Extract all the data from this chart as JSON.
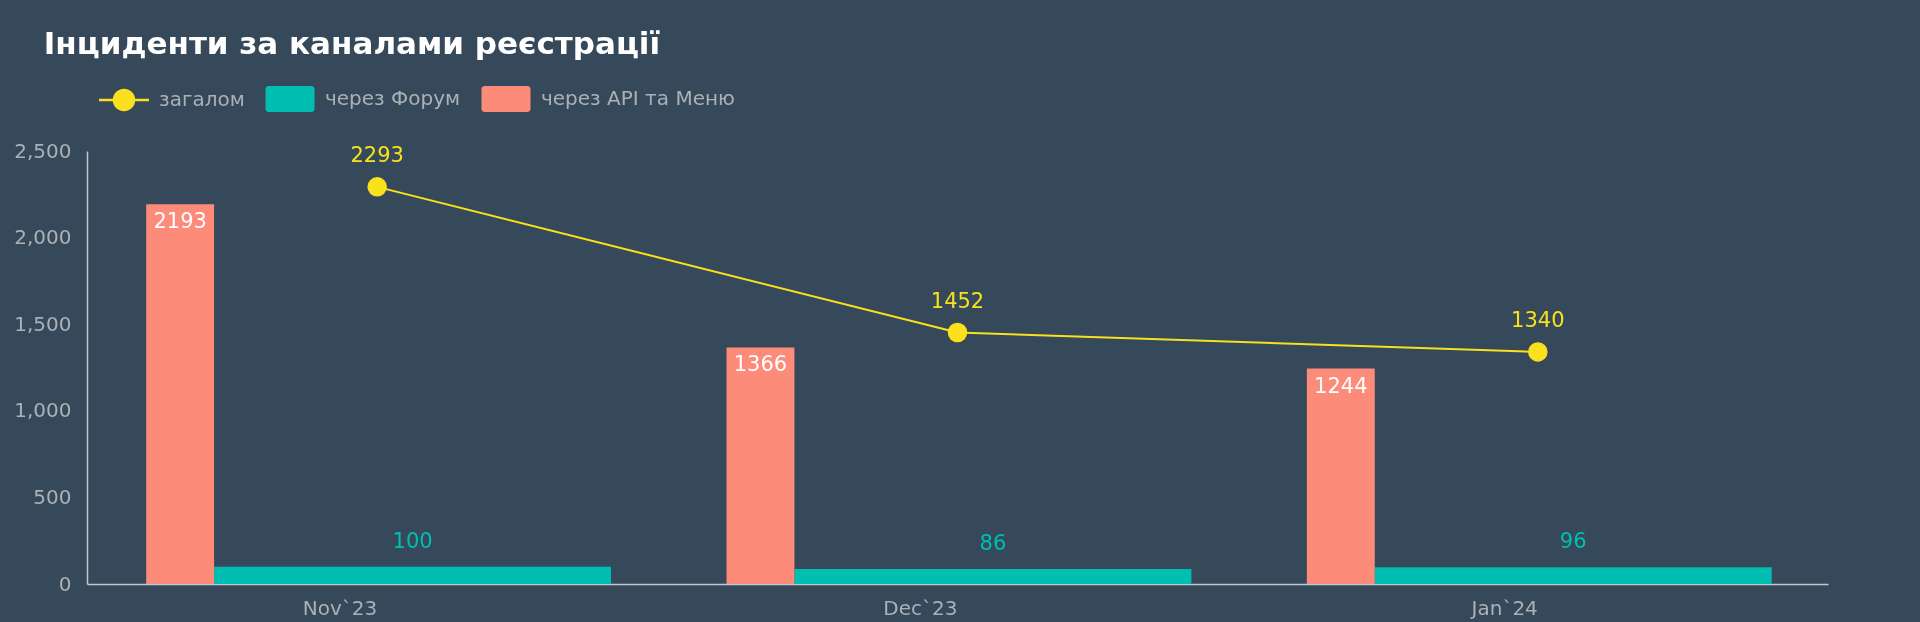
{
  "chart_data": {
    "type": "bar",
    "title": "Інциденти за каналами реєстрації",
    "categories": [
      "Nov`23",
      "Dec`23",
      "Jan`24"
    ],
    "series": [
      {
        "name": "загалом",
        "type": "line",
        "color": "#f9e21d",
        "values": [
          2293,
          1452,
          1340
        ]
      },
      {
        "name": "через Форум",
        "color": "#01beb2",
        "values": [
          100,
          86,
          96
        ]
      },
      {
        "name": "через API та Меню",
        "color": "#fd8b79",
        "values": [
          2193,
          1366,
          1244
        ]
      }
    ],
    "ylim": [
      0,
      2500
    ],
    "yticks": [
      0,
      500,
      {
        "value": 1000,
        "label": "1,000"
      },
      {
        "value": 1500,
        "label": "1,500"
      },
      {
        "value": 2000,
        "label": "2,000"
      },
      {
        "value": 2500,
        "label": "2,500"
      }
    ],
    "legend": "top left",
    "marker": "circle",
    "line_style": "solid",
    "data_labels": true
  }
}
